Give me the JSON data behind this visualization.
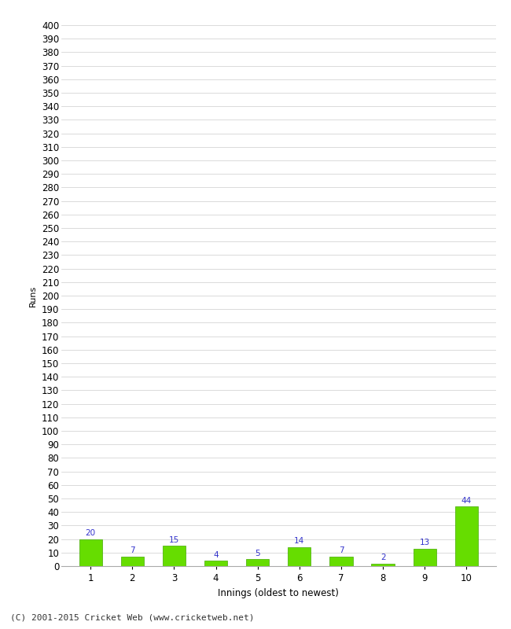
{
  "innings": [
    1,
    2,
    3,
    4,
    5,
    6,
    7,
    8,
    9,
    10
  ],
  "runs": [
    20,
    7,
    15,
    4,
    5,
    14,
    7,
    2,
    13,
    44
  ],
  "bar_color": "#66dd00",
  "bar_edge_color": "#44aa00",
  "label_color": "#3333cc",
  "xlabel": "Innings (oldest to newest)",
  "ylabel": "Runs",
  "ylim_min": 0,
  "ylim_max": 400,
  "ytick_step": 10,
  "background_color": "#ffffff",
  "grid_color": "#cccccc",
  "footer": "(C) 2001-2015 Cricket Web (www.cricketweb.net)",
  "label_fontsize": 7.5,
  "axis_fontsize": 8.5,
  "footer_fontsize": 8,
  "ylabel_fontsize": 8
}
